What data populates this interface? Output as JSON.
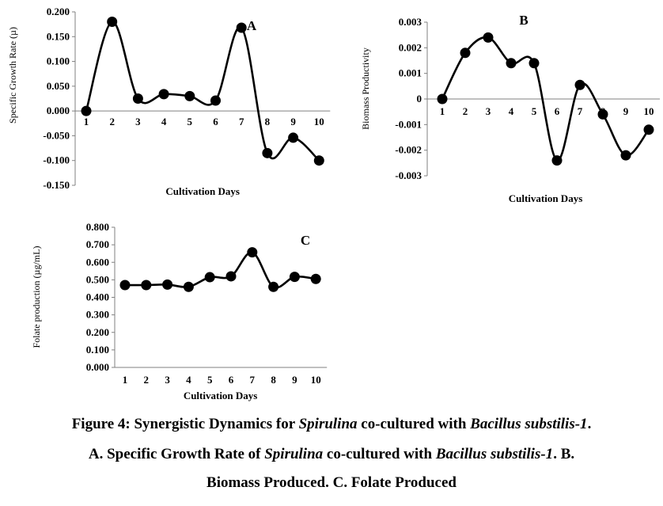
{
  "chart_data": [
    {
      "type": "line",
      "panel_label": "A",
      "xlabel": "Cultivation Days",
      "ylabel": "Specific Growth Rate (µ)",
      "x": [
        "1",
        "2",
        "3",
        "4",
        "5",
        "6",
        "7",
        "8",
        "9",
        "10"
      ],
      "values": [
        0.0,
        0.18,
        0.025,
        0.034,
        0.03,
        0.021,
        0.168,
        -0.085,
        -0.054,
        -0.1
      ],
      "ylim": [
        -0.15,
        0.2
      ],
      "yticks": [
        "0.200",
        "0.150",
        "0.100",
        "0.050",
        "0.000",
        "-0.050",
        "-0.100",
        "-0.150"
      ],
      "ytick_values": [
        0.2,
        0.15,
        0.1,
        0.05,
        0,
        -0.05,
        -0.1,
        -0.15
      ],
      "grid": false
    },
    {
      "type": "line",
      "panel_label": "B",
      "xlabel": "Cultivation Days",
      "ylabel": "Biomass Productivity",
      "x": [
        "1",
        "2",
        "3",
        "4",
        "5",
        "6",
        "7",
        "8",
        "9",
        "10"
      ],
      "values": [
        0.0,
        0.0018,
        0.0024,
        0.0014,
        0.0014,
        -0.0024,
        0.00055,
        -0.0006,
        -0.0022,
        -0.0012
      ],
      "ylim": [
        -0.003,
        0.003
      ],
      "yticks": [
        "0.003",
        "0.002",
        "0.001",
        "0",
        "-0.001",
        "-0.002",
        "-0.003"
      ],
      "ytick_values": [
        0.003,
        0.002,
        0.001,
        0,
        -0.001,
        -0.002,
        -0.003
      ],
      "grid": false
    },
    {
      "type": "line",
      "panel_label": "C",
      "xlabel": "Cultivation Days",
      "ylabel": "Folate production (µg/mL)",
      "x": [
        "1",
        "2",
        "3",
        "4",
        "5",
        "6",
        "7",
        "8",
        "9",
        "10"
      ],
      "values": [
        0.47,
        0.47,
        0.473,
        0.46,
        0.515,
        0.52,
        0.657,
        0.46,
        0.517,
        0.505
      ],
      "ylim": [
        0.0,
        0.8
      ],
      "yticks": [
        "0.800",
        "0.700",
        "0.600",
        "0.500",
        "0.400",
        "0.300",
        "0.200",
        "0.100",
        "0.000"
      ],
      "ytick_values": [
        0.8,
        0.7,
        0.6,
        0.5,
        0.4,
        0.3,
        0.2,
        0.1,
        0
      ],
      "grid": false
    }
  ],
  "caption": {
    "line1": [
      "Figure 4: Synergistic Dynamics for ",
      "Spirulina",
      " co-cultured with ",
      "Bacillus substilis-1",
      "."
    ],
    "line2": [
      "A. Specific Growth Rate of ",
      "Spirulina",
      " co-cultured with ",
      "Bacillus substilis-1",
      ". B."
    ],
    "line3": "Biomass Produced. C. Folate Produced"
  }
}
